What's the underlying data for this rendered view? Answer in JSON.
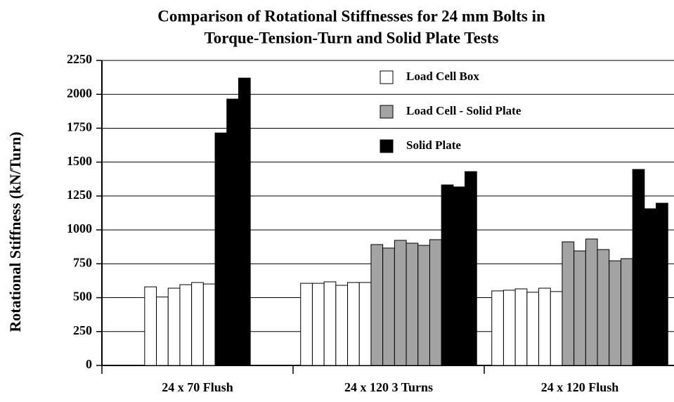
{
  "chart_data": {
    "type": "bar",
    "title": [
      "Comparison of Rotational Stiffnesses for 24 mm Bolts in",
      "Torque-Tension-Turn and Solid Plate Tests"
    ],
    "y_label": "Rotational Stiffness (kN/Turn)",
    "categories": [
      "24 x 70 Flush",
      "24 x 120 3 Turns",
      "24 x 120 Flush"
    ],
    "series": [
      {
        "name": "Load Cell Box",
        "color": "#ffffff",
        "values": [
          [
            580,
            505,
            570,
            596,
            612,
            601
          ],
          [
            606,
            606,
            617,
            591,
            612,
            612
          ],
          [
            550,
            555,
            565,
            540,
            570,
            545
          ]
        ]
      },
      {
        "name": "Load Cell - Solid Plate",
        "color": "#a3a3a3",
        "values": [
          [],
          [
            892,
            866,
            923,
            902,
            886,
            928
          ],
          [
            912,
            845,
            933,
            855,
            772,
            788
          ]
        ]
      },
      {
        "name": "Solid Plate",
        "color": "#000000",
        "values": [
          [
            1715,
            1965,
            2120
          ],
          [
            1332,
            1317,
            1430
          ],
          [
            1446,
            1156,
            1197
          ]
        ]
      }
    ],
    "ylim": [
      0,
      2250
    ],
    "yticks": [
      0,
      250,
      500,
      750,
      1000,
      1250,
      1500,
      1750,
      2000,
      2250
    ],
    "grid": true
  }
}
